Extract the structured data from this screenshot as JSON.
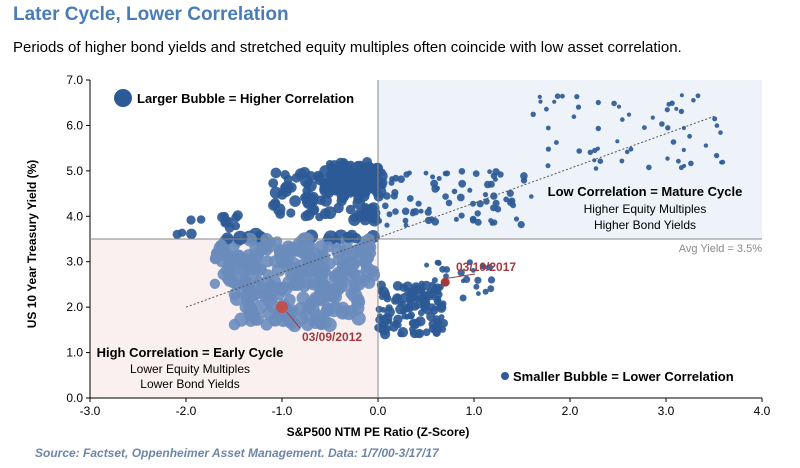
{
  "header": {
    "title": "Later Cycle, Lower Correlation",
    "subtitle": "Periods of higher bond yields and stretched equity multiples often coincide with low asset correlation."
  },
  "footer": {
    "source": "Source: Factset, Oppenheimer Asset Management. Data: 1/7/00-3/17/17"
  },
  "colors": {
    "bubble": "#2c5a96",
    "highlight": "#c0504d",
    "highlight_dark": "#a3393d",
    "upper_right_shade": "#eef2f9",
    "lower_left_shade": "#faf0f0",
    "trendline": "#555555"
  },
  "chart_data": {
    "type": "scatter",
    "xlabel": "S&P500 NTM PE Ratio (Z-Score)",
    "ylabel": "US 10 Year Treasury Yield (%)",
    "xlim": [
      -3.0,
      4.0
    ],
    "ylim": [
      0.0,
      7.0
    ],
    "x_ticks": [
      "-3.0",
      "-2.0",
      "-1.0",
      "0.0",
      "1.0",
      "2.0",
      "3.0",
      "4.0"
    ],
    "y_ticks": [
      "0.0",
      "1.0",
      "2.0",
      "3.0",
      "4.0",
      "5.0",
      "6.0",
      "7.0"
    ],
    "grid": false,
    "avg_yield": 3.5,
    "trendline": [
      [
        -2.0,
        2.0
      ],
      [
        3.5,
        6.2
      ]
    ],
    "legend": [
      {
        "label": "Larger Bubble = Higher Correlation",
        "size": "large"
      },
      {
        "label": "Smaller Bubble = Lower Correlation",
        "size": "small"
      }
    ],
    "annotations": {
      "avg_yield_label": "Avg Yield = 3.5%",
      "mature_cycle": {
        "title": "Low Correlation = Mature Cycle",
        "line1": "Higher Equity Multiples",
        "line2": "Higher Bond Yields"
      },
      "early_cycle": {
        "title": "High Correlation = Early Cycle",
        "line1": "Lower Equity Multiples",
        "line2": "Lower Bond Yields"
      }
    },
    "highlights": [
      {
        "label": "03/09/2012",
        "x": -1.0,
        "y": 2.0
      },
      {
        "label": "03/10/2017",
        "x": 0.7,
        "y": 2.55
      }
    ],
    "clusters": [
      {
        "name": "early-2000s-high-yield",
        "x": [
          -0.55,
          0.0
        ],
        "y": [
          4.5,
          5.2
        ],
        "corr": [
          0.3,
          0.75
        ],
        "n": 130
      },
      {
        "name": "mid-2000s",
        "x": [
          -1.1,
          0.05
        ],
        "y": [
          3.9,
          5.0
        ],
        "corr": [
          0.4,
          0.8
        ],
        "n": 90
      },
      {
        "name": "2002-2003-low-pe-high-yield",
        "x": [
          -2.1,
          -1.4
        ],
        "y": [
          3.6,
          4.1
        ],
        "corr": [
          0.35,
          0.6
        ],
        "n": 14
      },
      {
        "name": "2008-2012-central",
        "x": [
          -1.7,
          0.0
        ],
        "y": [
          2.5,
          3.6
        ],
        "corr": [
          0.55,
          1.0
        ],
        "n": 200
      },
      {
        "name": "2012-low-yield",
        "x": [
          -1.5,
          -0.2
        ],
        "y": [
          1.6,
          2.5
        ],
        "corr": [
          0.6,
          1.0
        ],
        "n": 110
      },
      {
        "name": "2013-2016-low-yield",
        "x": [
          0.0,
          0.7
        ],
        "y": [
          1.4,
          2.5
        ],
        "corr": [
          0.15,
          0.6
        ],
        "n": 120
      },
      {
        "name": "late-90s-2000-high-pe",
        "x": [
          0.0,
          1.6
        ],
        "y": [
          3.8,
          5.0
        ],
        "corr": [
          0.05,
          0.35
        ],
        "n": 80
      },
      {
        "name": "2000-mania",
        "x": [
          1.6,
          3.6
        ],
        "y": [
          5.0,
          6.7
        ],
        "corr": [
          0.0,
          0.15
        ],
        "n": 60
      },
      {
        "name": "2016-2017-rally",
        "x": [
          0.4,
          1.2
        ],
        "y": [
          2.2,
          3.0
        ],
        "corr": [
          0.05,
          0.3
        ],
        "n": 25
      }
    ]
  }
}
